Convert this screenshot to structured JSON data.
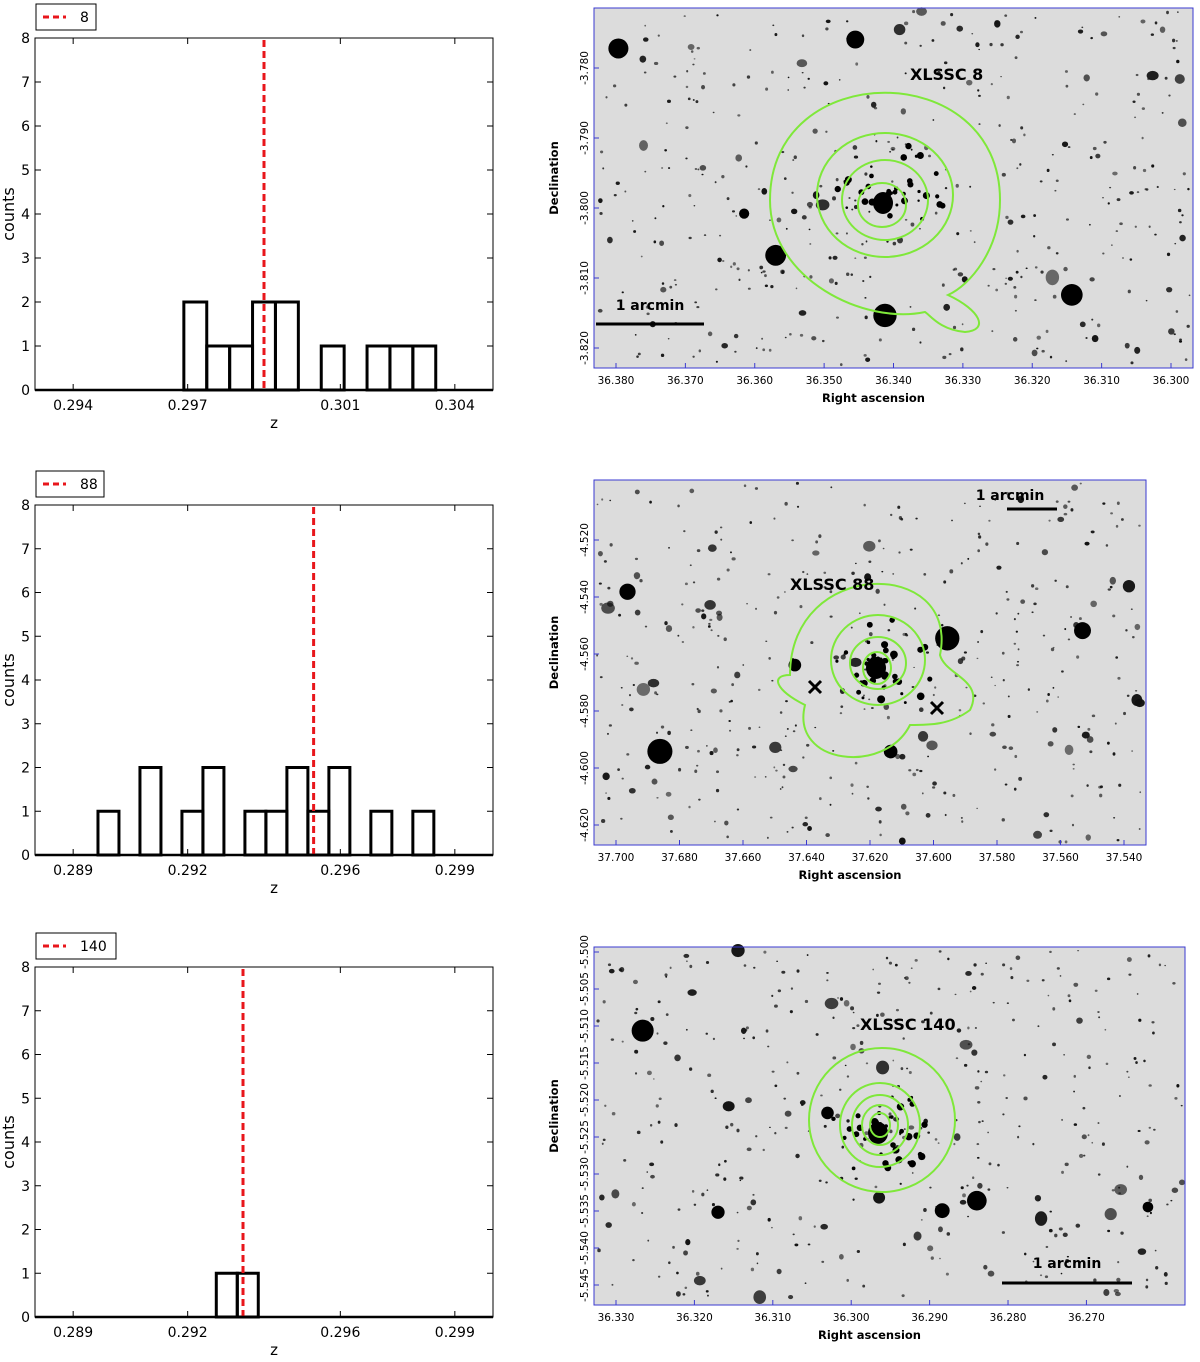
{
  "chart_data": [
    {
      "type": "histogram",
      "legend": "8",
      "xlabel": "z",
      "ylabel": "counts",
      "xlim": [
        0.293,
        0.305
      ],
      "ylim": [
        0,
        8
      ],
      "xticks": [
        0.294,
        0.297,
        0.301,
        0.304
      ],
      "xtick_labels": [
        "0.294",
        "0.297",
        "0.301",
        "0.304"
      ],
      "yticks": [
        0,
        1,
        2,
        3,
        4,
        5,
        6,
        7,
        8
      ],
      "bin_width": 0.0006,
      "bins": [
        [
          0.2969,
          2
        ],
        [
          0.2975,
          1
        ],
        [
          0.2981,
          1
        ],
        [
          0.2987,
          2
        ],
        [
          0.2993,
          2
        ],
        [
          0.3005,
          1
        ],
        [
          0.3017,
          1
        ],
        [
          0.3023,
          1
        ],
        [
          0.3029,
          1
        ]
      ],
      "mean_line": 0.299,
      "mean_line_color": "#e8161b"
    },
    {
      "type": "histogram",
      "legend": "88",
      "xlabel": "z",
      "ylabel": "counts",
      "xlim": [
        0.288,
        0.3
      ],
      "ylim": [
        0,
        8
      ],
      "xticks": [
        0.289,
        0.292,
        0.296,
        0.299
      ],
      "xtick_labels": [
        "0.289",
        "0.292",
        "0.296",
        "0.299"
      ],
      "yticks": [
        0,
        1,
        2,
        3,
        4,
        5,
        6,
        7,
        8
      ],
      "bin_width": 0.00055,
      "bins": [
        [
          0.28965,
          1
        ],
        [
          0.29075,
          2
        ],
        [
          0.29185,
          1
        ],
        [
          0.2924,
          2
        ],
        [
          0.2935,
          1
        ],
        [
          0.29405,
          1
        ],
        [
          0.2946,
          2
        ],
        [
          0.29515,
          1
        ],
        [
          0.2957,
          2
        ],
        [
          0.2968,
          1
        ],
        [
          0.2979,
          1
        ]
      ],
      "mean_line": 0.2953,
      "mean_line_color": "#e8161b"
    },
    {
      "type": "histogram",
      "legend": "140",
      "xlabel": "z",
      "ylabel": "counts",
      "xlim": [
        0.288,
        0.3
      ],
      "ylim": [
        0,
        8
      ],
      "xticks": [
        0.289,
        0.292,
        0.296,
        0.299
      ],
      "xtick_labels": [
        "0.289",
        "0.292",
        "0.296",
        "0.299"
      ],
      "yticks": [
        0,
        1,
        2,
        3,
        4,
        5,
        6,
        7,
        8
      ],
      "bin_width": 0.00055,
      "bins": [
        [
          0.29275,
          1
        ],
        [
          0.2933,
          1
        ]
      ],
      "mean_line": 0.29345,
      "mean_line_color": "#e8161b"
    }
  ],
  "sky_images": [
    {
      "label": "XLSSC 8",
      "scale_label": "1 arcmin",
      "xlabel": "Right ascension",
      "ylabel": "Declination",
      "ra_ticks": [
        "36.380",
        "36.370",
        "36.360",
        "36.350",
        "36.340",
        "36.330",
        "36.320",
        "36.310",
        "36.300"
      ],
      "dec_ticks": [
        "-3.780",
        "-3.790",
        "-3.800",
        "-3.810",
        "-3.820"
      ],
      "contour_color": "#7fe83a"
    },
    {
      "label": "XLSSC 88",
      "scale_label": "1 arcmin",
      "xlabel": "Right ascension",
      "ylabel": "Declination",
      "ra_ticks": [
        "37.700",
        "37.680",
        "37.660",
        "37.640",
        "37.620",
        "37.600",
        "37.580",
        "37.560",
        "37.540"
      ],
      "dec_ticks": [
        "-4.520",
        "-4.540",
        "-4.560",
        "-4.580",
        "-4.600",
        "-4.620"
      ],
      "contour_color": "#7fe83a"
    },
    {
      "label": "XLSSC 140",
      "scale_label": "1 arcmin",
      "xlabel": "Right ascension",
      "ylabel": "Declination",
      "ra_ticks": [
        "36.330",
        "36.320",
        "36.310",
        "36.300",
        "36.290",
        "36.280",
        "36.270"
      ],
      "dec_ticks": [
        "-5.500",
        "-5.505",
        "-5.510",
        "-5.515",
        "-5.520",
        "-5.525",
        "-5.530",
        "-5.535",
        "-5.540",
        "-5.545"
      ],
      "contour_color": "#7fe83a"
    }
  ]
}
